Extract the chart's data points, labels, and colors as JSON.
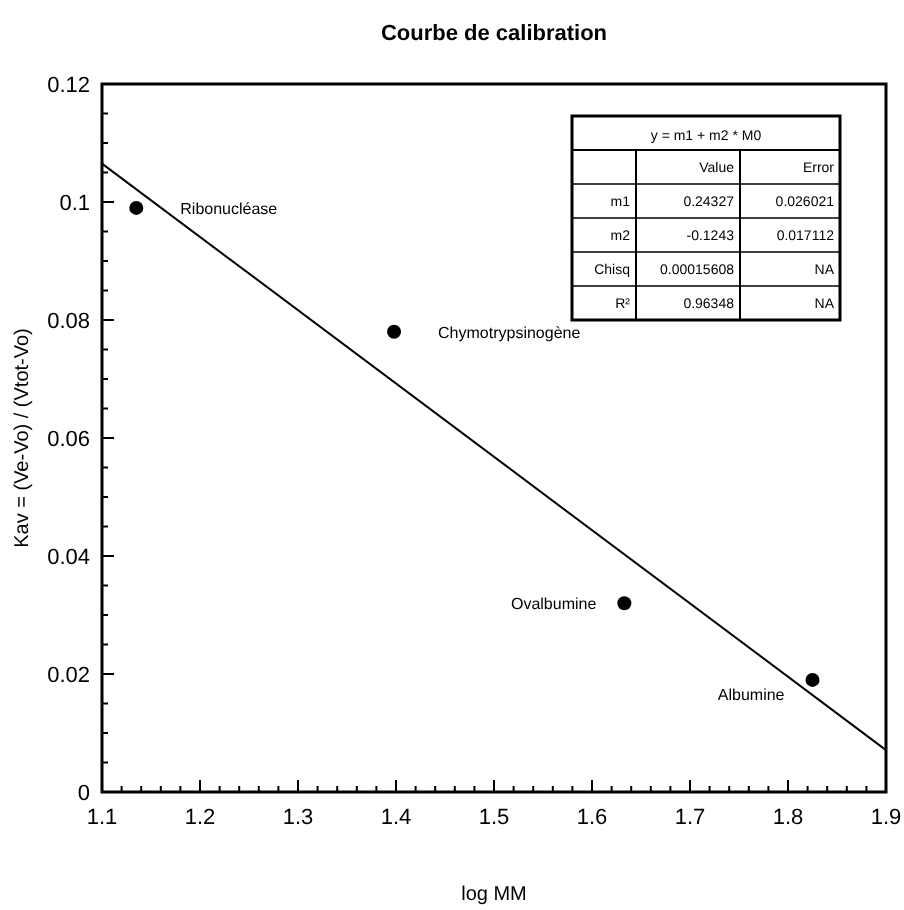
{
  "chart_data": {
    "type": "scatter",
    "title": "Courbe de calibration",
    "xlabel": "log MM",
    "ylabel": "Kav = (Ve-Vo) / (Vtot-Vo)",
    "xlim": [
      1.1,
      1.9
    ],
    "ylim": [
      0,
      0.12
    ],
    "xticks": [
      1.1,
      {
        "value": 1.12,
        "label": null
      },
      {
        "value": 1.14,
        "label": null
      },
      {
        "value": 1.16,
        "label": null
      },
      {
        "value": 1.18,
        "label": null
      },
      1.2,
      {
        "value": 1.22,
        "label": null
      },
      {
        "value": 1.24,
        "label": null
      },
      {
        "value": 1.26,
        "label": null
      },
      {
        "value": 1.28,
        "label": null
      },
      1.3,
      {
        "value": 1.32,
        "label": null
      },
      {
        "value": 1.34,
        "label": null
      },
      {
        "value": 1.36,
        "label": null
      },
      {
        "value": 1.38,
        "label": null
      },
      1.4,
      {
        "value": 1.42,
        "label": null
      },
      {
        "value": 1.44,
        "label": null
      },
      {
        "value": 1.46,
        "label": null
      },
      {
        "value": 1.48,
        "label": null
      },
      1.5,
      {
        "value": 1.52,
        "label": null
      },
      {
        "value": 1.54,
        "label": null
      },
      {
        "value": 1.56,
        "label": null
      },
      {
        "value": 1.58,
        "label": null
      },
      1.6,
      {
        "value": 1.62,
        "label": null
      },
      {
        "value": 1.64,
        "label": null
      },
      {
        "value": 1.66,
        "label": null
      },
      {
        "value": 1.68,
        "label": null
      },
      1.7,
      {
        "value": 1.72,
        "label": null
      },
      {
        "value": 1.74,
        "label": null
      },
      {
        "value": 1.76,
        "label": null
      },
      {
        "value": 1.78,
        "label": null
      },
      1.8,
      {
        "value": 1.82,
        "label": null
      },
      {
        "value": 1.84,
        "label": null
      },
      {
        "value": 1.86,
        "label": null
      },
      {
        "value": 1.88,
        "label": null
      },
      1.9
    ],
    "yticks": [
      0,
      {
        "value": 0.005,
        "label": null
      },
      {
        "value": 0.01,
        "label": null
      },
      {
        "value": 0.015,
        "label": null
      },
      0.02,
      {
        "value": 0.025,
        "label": null
      },
      {
        "value": 0.03,
        "label": null
      },
      {
        "value": 0.035,
        "label": null
      },
      0.04,
      {
        "value": 0.045,
        "label": null
      },
      {
        "value": 0.05,
        "label": null
      },
      {
        "value": 0.055,
        "label": null
      },
      0.06,
      {
        "value": 0.065,
        "label": null
      },
      {
        "value": 0.07,
        "label": null
      },
      {
        "value": 0.075,
        "label": null
      },
      0.08,
      {
        "value": 0.085,
        "label": null
      },
      {
        "value": 0.09,
        "label": null
      },
      {
        "value": 0.095,
        "label": null
      },
      0.1,
      {
        "value": 0.105,
        "label": null
      },
      {
        "value": 0.11,
        "label": null
      },
      {
        "value": 0.115,
        "label": null
      },
      0.12
    ],
    "grid": false,
    "series": [
      {
        "color": "#000000",
        "marker": "circle",
        "x": [
          1.135,
          1.398,
          1.633,
          1.825
        ],
        "values": [
          0.099,
          0.078,
          0.032,
          0.019
        ]
      },
      {
        "type": "line",
        "color": "#000000",
        "marker": "none",
        "x": [
          1.1,
          1.9
        ],
        "values": [
          0.1065,
          0.0071
        ]
      }
    ],
    "annotations": [
      {
        "text": "Ribonucléase",
        "x": 1.135,
        "y": 0.099
      },
      {
        "text": "Chymotrypsinogène",
        "x": 1.398,
        "y": 0.078
      },
      {
        "text": "Ovalbumine",
        "x": 1.633,
        "y": 0.032
      },
      {
        "text": "Albumine",
        "x": 1.825,
        "y": 0.019
      },
      "y = m1 + m2 * M0",
      "Value",
      "Error",
      "m1",
      "0.24327",
      "0.026021",
      "m2",
      "-0.1243",
      "0.017112",
      "Chisq",
      "0.00015608",
      "NA",
      "R²",
      "0.96348",
      "NA"
    ]
  }
}
